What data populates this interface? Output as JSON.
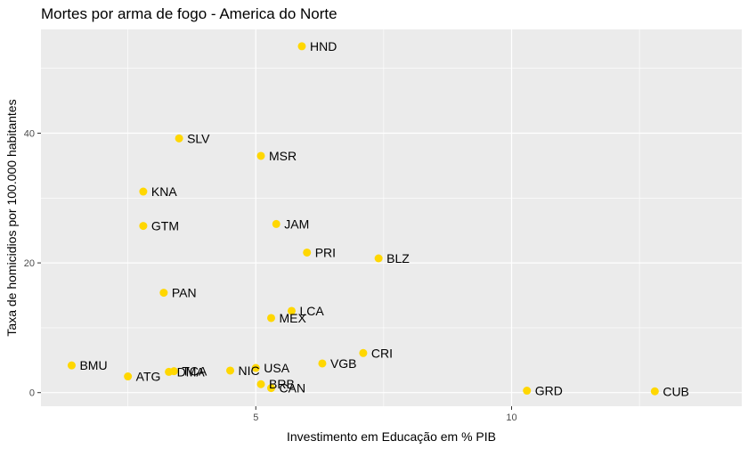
{
  "chart_data": {
    "type": "scatter",
    "title": "Mortes por arma de fogo - America do Norte",
    "xlabel": "Investimento em Educação em % PIB",
    "ylabel": "Taxa de homicidios por 100.000 habitantes",
    "xlim": [
      0.8,
      14.5
    ],
    "ylim": [
      -2.1,
      56
    ],
    "x_ticks": [
      5,
      10
    ],
    "y_ticks": [
      0,
      20,
      40
    ],
    "grid": true,
    "point_color": "#FFD700",
    "panel_color": "#EBEBEB",
    "points": [
      {
        "label": "HND",
        "x": 5.9,
        "y": 53.4
      },
      {
        "label": "SLV",
        "x": 3.5,
        "y": 39.2
      },
      {
        "label": "MSR",
        "x": 5.1,
        "y": 36.5
      },
      {
        "label": "KNA",
        "x": 2.8,
        "y": 31.0
      },
      {
        "label": "GTM",
        "x": 2.8,
        "y": 25.7
      },
      {
        "label": "JAM",
        "x": 5.4,
        "y": 26.0
      },
      {
        "label": "PRI",
        "x": 6.0,
        "y": 21.6
      },
      {
        "label": "BLZ",
        "x": 7.4,
        "y": 20.7
      },
      {
        "label": "PAN",
        "x": 3.2,
        "y": 15.4
      },
      {
        "label": "LCA",
        "x": 5.7,
        "y": 12.6
      },
      {
        "label": "MEX",
        "x": 5.3,
        "y": 11.5
      },
      {
        "label": "CRI",
        "x": 7.1,
        "y": 6.1
      },
      {
        "label": "VGB",
        "x": 6.3,
        "y": 4.5
      },
      {
        "label": "BMU",
        "x": 1.4,
        "y": 4.2
      },
      {
        "label": "USA",
        "x": 5.0,
        "y": 3.8
      },
      {
        "label": "NIC",
        "x": 4.5,
        "y": 3.4
      },
      {
        "label": "TCA",
        "x": 3.4,
        "y": 3.3
      },
      {
        "label": "DMA",
        "x": 3.3,
        "y": 3.2
      },
      {
        "label": "ATG",
        "x": 2.5,
        "y": 2.5
      },
      {
        "label": "BRB",
        "x": 5.1,
        "y": 1.3
      },
      {
        "label": "CAN",
        "x": 5.3,
        "y": 0.7
      },
      {
        "label": "GRD",
        "x": 10.3,
        "y": 0.3
      },
      {
        "label": "CUB",
        "x": 12.8,
        "y": 0.2
      }
    ]
  }
}
